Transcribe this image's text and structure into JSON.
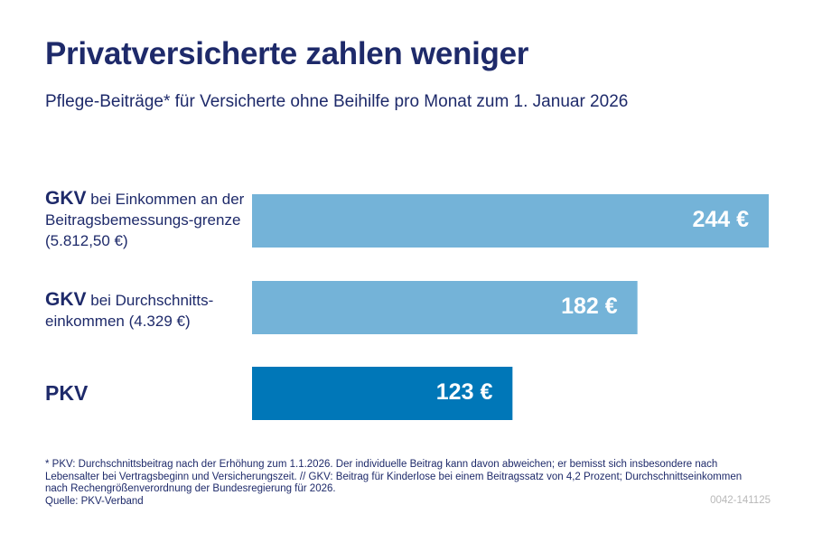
{
  "title": "Privatversicherte zahlen weniger",
  "subtitle": "Pflege-Beiträge* für Versicherte ohne Beihilfe pro Monat zum 1. Januar 2026",
  "chart_data": {
    "type": "bar",
    "orientation": "horizontal",
    "categories": [
      {
        "bold": "GKV",
        "text": " bei Einkommen an der Beitragsbemessungs-grenze (5.812,50 €)"
      },
      {
        "bold": "GKV",
        "text": " bei Durchschnitts-einkommen (4.329 €)"
      },
      {
        "bold": "PKV",
        "text": ""
      }
    ],
    "values": [
      244,
      182,
      123
    ],
    "value_labels": [
      "244 €",
      "182 €",
      "123 €"
    ],
    "colors": [
      "#74b3d8",
      "#74b3d8",
      "#0077b8"
    ],
    "unit": "€",
    "grid": false
  },
  "footnote": "* PKV: Durchschnittsbeitrag nach der Erhöhung zum 1.1.2026. Der individuelle Beitrag kann davon abweichen; er bemisst sich insbesondere nach Lebensalter bei Vertragsbeginn und Versicherungszeit. // GKV: Beitrag für Kinderlose bei einem Beitragssatz von 4,2 Prozent; Durchschnittseinkommen nach Rechengrößenverordnung der Bundesregierung für 2026.",
  "source": "Quelle: PKV-Verband",
  "code": "0042-141125"
}
